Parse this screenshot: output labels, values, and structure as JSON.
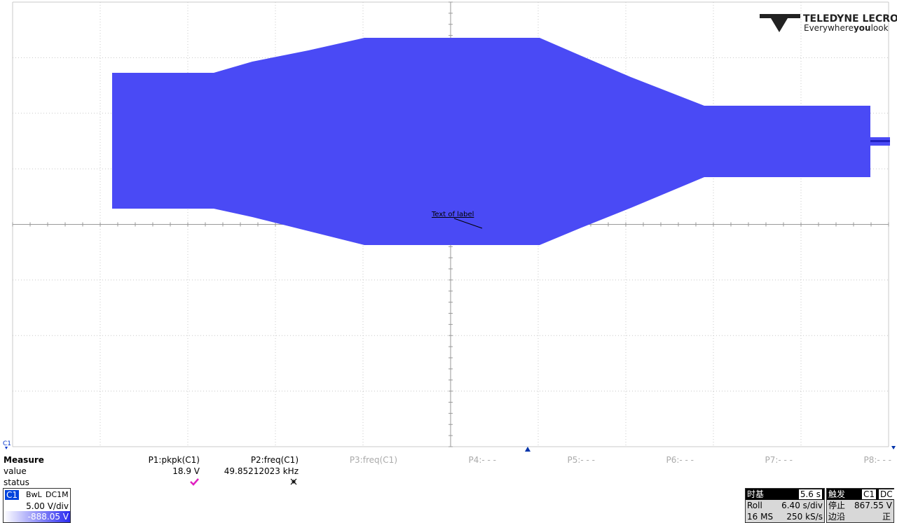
{
  "logo": {
    "brand": "TELEDYNE LECROY",
    "tagline_start": "Everywhere",
    "tagline_bold": "you",
    "tagline_end": "look"
  },
  "annotation": "Text of label",
  "channel_marker": "C1",
  "measure": {
    "title": "Measure",
    "row_labels": [
      "value",
      "status"
    ],
    "params": [
      {
        "name": "P1:pkpk(C1)",
        "value": "18.9 V"
      },
      {
        "name": "P2:freq(C1)",
        "value": "49.85212023 kHz"
      },
      {
        "name": "P3:freq(C1)"
      },
      {
        "name": "P4:- - -"
      },
      {
        "name": "P5:- - -"
      },
      {
        "name": "P6:- - -"
      },
      {
        "name": "P7:- - -"
      },
      {
        "name": "P8:- - -"
      }
    ]
  },
  "channel": {
    "name": "C1",
    "bandwidth": "BwL",
    "coupling": "DC1M",
    "scale": "5.00 V/div",
    "offset": "-888.05 V"
  },
  "timebase": {
    "label": "时基",
    "delay": "5.6 s",
    "mode": "Roll",
    "scale": "6.40 s/div",
    "samples": "16 MS",
    "rate": "250 kS/s"
  },
  "trigger": {
    "label": "触发",
    "source": "C1",
    "coupling": "DC",
    "state": "停止",
    "level": "867.55 V",
    "type": "边沿",
    "slope": "正"
  }
}
